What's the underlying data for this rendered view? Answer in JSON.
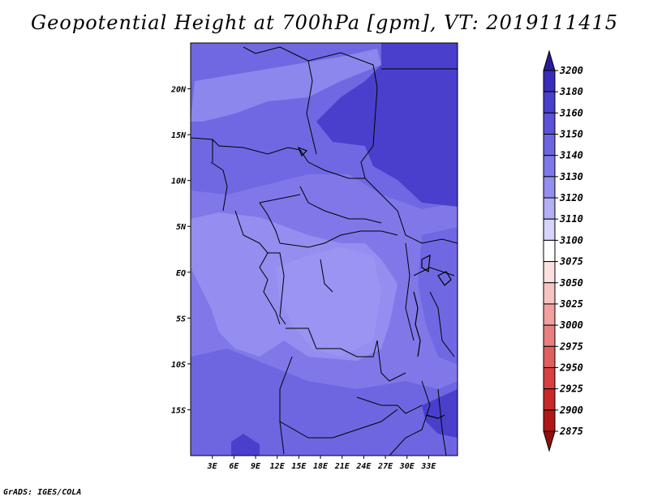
{
  "title": "Geopotential Height at 700hPa [gpm], VT: 2019111415",
  "credit": "GrADS: IGES/COLA",
  "map": {
    "lon_range": [
      0,
      37
    ],
    "lat_range": [
      -20,
      25
    ],
    "lat_labels": [
      "20N",
      "15N",
      "10N",
      "5N",
      "EQ",
      "5S",
      "10S",
      "15S"
    ],
    "lat_values": [
      20,
      15,
      10,
      5,
      0,
      -5,
      -10,
      -15
    ],
    "lon_labels": [
      "3E",
      "6E",
      "9E",
      "12E",
      "15E",
      "18E",
      "21E",
      "24E",
      "27E",
      "30E",
      "33E"
    ],
    "lon_values": [
      3,
      6,
      9,
      12,
      15,
      18,
      21,
      24,
      27,
      30,
      33
    ]
  },
  "colorbar": {
    "levels": [
      "3200",
      "3180",
      "3160",
      "3150",
      "3140",
      "3130",
      "3120",
      "3110",
      "3100",
      "3075",
      "3050",
      "3025",
      "3000",
      "2975",
      "2950",
      "2925",
      "2900",
      "2875"
    ],
    "colors": [
      "#2a1a9a",
      "#3a2cb8",
      "#4a3fcc",
      "#5c52d8",
      "#6e66e0",
      "#8078e8",
      "#948ef0",
      "#b4b0f6",
      "#d6d4fa",
      "#ffffff",
      "#fbe0e0",
      "#f7c4c4",
      "#f0a0a0",
      "#e88080",
      "#e06060",
      "#d84040",
      "#c82828",
      "#b01818",
      "#901010"
    ],
    "top_color": "#2a1a9a",
    "bottom_color": "#901010"
  }
}
